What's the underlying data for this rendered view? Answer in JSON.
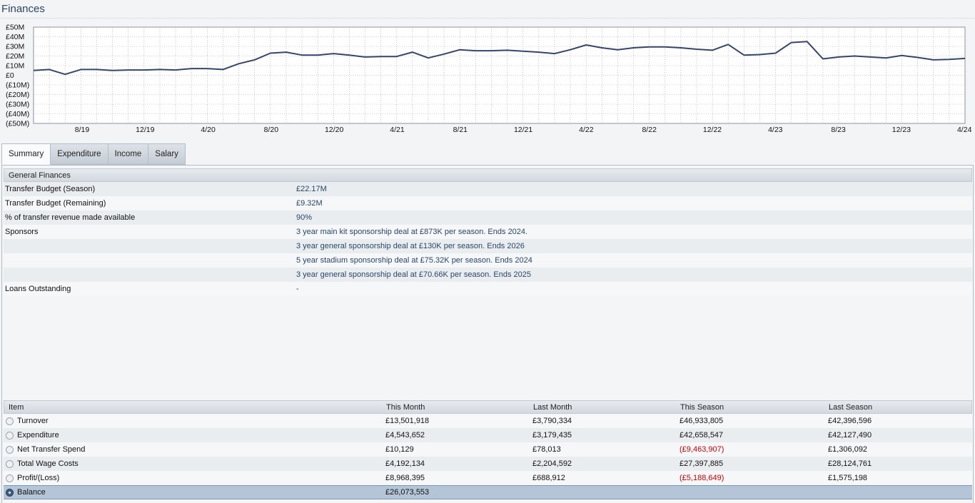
{
  "page": {
    "title": "Finances"
  },
  "chart_data": {
    "type": "line",
    "ylim": [
      -50,
      50
    ],
    "y_ticks": [
      "£50M",
      "£40M",
      "£30M",
      "£20M",
      "£10M",
      "£0",
      "(£10M)",
      "(£20M)",
      "(£30M)",
      "(£40M)",
      "(£50M)"
    ],
    "x_tick_labels": [
      "8/19",
      "12/19",
      "4/20",
      "8/20",
      "12/20",
      "4/21",
      "8/21",
      "12/21",
      "4/22",
      "8/22",
      "12/22",
      "4/23",
      "8/23",
      "12/23",
      "4/24"
    ],
    "grid": true,
    "values": [
      5,
      6,
      1,
      6,
      6,
      5,
      5.5,
      5.5,
      6,
      5.5,
      7,
      7,
      6,
      12,
      16,
      23,
      24,
      21,
      21,
      22.5,
      21,
      19,
      19.5,
      19.5,
      24,
      18,
      22,
      26.5,
      25.5,
      25.5,
      26,
      25,
      24,
      22.5,
      26.5,
      31.5,
      28.5,
      26.5,
      28.5,
      29.5,
      29.5,
      28.5,
      27,
      26,
      32,
      21,
      21.5,
      23,
      34,
      35,
      17,
      19,
      20,
      19,
      18,
      20.5,
      18.5,
      16,
      16.5,
      17.5
    ]
  },
  "tabs": [
    {
      "label": "Summary",
      "active": true
    },
    {
      "label": "Expenditure"
    },
    {
      "label": "Income"
    },
    {
      "label": "Salary"
    }
  ],
  "general": {
    "heading": "General Finances",
    "rows": [
      {
        "label": "Transfer Budget (Season)",
        "value": "£22.17M"
      },
      {
        "label": "Transfer Budget (Remaining)",
        "value": "£9.32M"
      },
      {
        "label": "% of transfer revenue made available",
        "value": "90%"
      },
      {
        "label": "Sponsors",
        "value": "3 year main kit sponsorship deal at £873K per season. Ends 2024."
      },
      {
        "label": "",
        "value": "3 year general sponsorship deal at £130K per season. Ends 2026"
      },
      {
        "label": "",
        "value": "5 year stadium sponsorship deal at £75.32K per season. Ends 2024"
      },
      {
        "label": "",
        "value": "3 year general sponsorship deal at £70.66K per season. Ends 2025"
      },
      {
        "label": "Loans Outstanding",
        "value": "-"
      }
    ]
  },
  "summary": {
    "headers": [
      "Item",
      "This Month",
      "Last Month",
      "This Season",
      "Last Season"
    ],
    "rows": [
      {
        "item": "Turnover",
        "this_month": "£13,501,918",
        "last_month": "£3,790,334",
        "this_season": "£46,933,805",
        "last_season": "£42,396,596"
      },
      {
        "item": "Expenditure",
        "this_month": "£4,543,652",
        "last_month": "£3,179,435",
        "this_season": "£42,658,547",
        "last_season": "£42,127,490"
      },
      {
        "item": "Net Transfer Spend",
        "this_month": "£10,129",
        "last_month": "£78,013",
        "this_season": "(£9,463,907)",
        "last_season": "£1,306,092"
      },
      {
        "item": "Total Wage Costs",
        "this_month": "£4,192,134",
        "last_month": "£2,204,592",
        "this_season": "£27,397,885",
        "last_season": "£28,124,761"
      },
      {
        "item": "Profit/(Loss)",
        "this_month": "£8,968,395",
        "last_month": "£688,912",
        "this_season": "(£5,188,649)",
        "last_season": "£1,575,198"
      },
      {
        "item": "Balance",
        "this_month": "£26,073,553",
        "last_month": "",
        "this_season": "",
        "last_season": "",
        "selected": true
      }
    ]
  },
  "colors": {
    "line": "#34476a",
    "negative": "#cc0000",
    "selected_row": "#b3c5d6"
  }
}
